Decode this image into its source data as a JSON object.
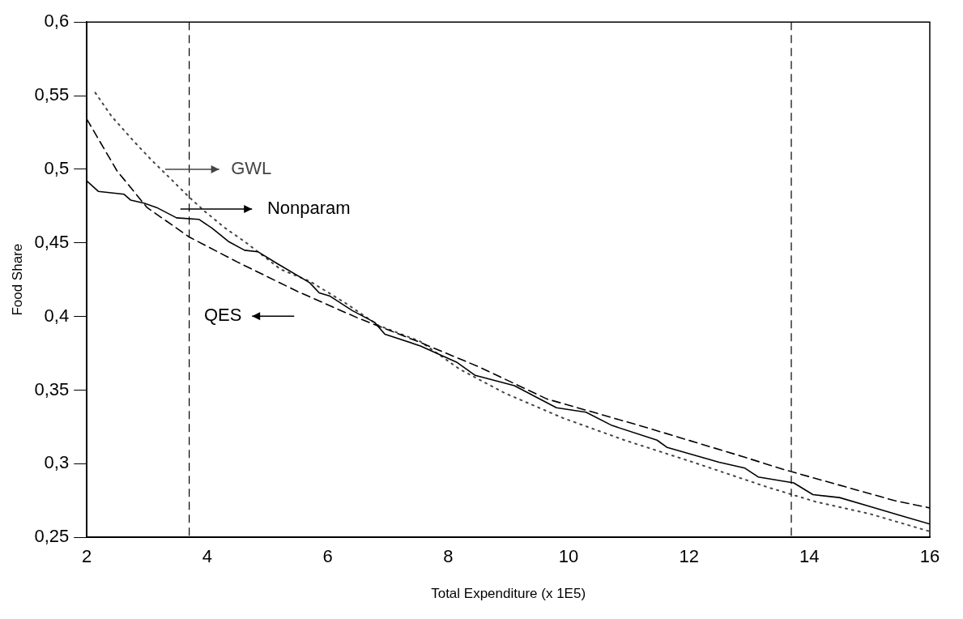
{
  "chart_data": {
    "type": "line",
    "xlabel": "Total Expenditure (x 1E5)",
    "ylabel": "Food Share",
    "xlim": [
      2,
      16
    ],
    "xticks": [
      2,
      4,
      6,
      8,
      10,
      12,
      14,
      16
    ],
    "ylim": [
      0.25,
      0.6
    ],
    "yticks": [
      {
        "value": 0.25,
        "label": "0,25"
      },
      {
        "value": 0.3,
        "label": "0,3"
      },
      {
        "value": 0.35,
        "label": "0,35"
      },
      {
        "value": 0.4,
        "label": "0,4"
      },
      {
        "value": 0.45,
        "label": "0,45"
      },
      {
        "value": 0.5,
        "label": "0,5"
      },
      {
        "value": 0.55,
        "label": "0,55"
      },
      {
        "value": 0.6,
        "label": "0,6"
      }
    ],
    "grid": false,
    "legend": "top left",
    "marker": "none",
    "series": [
      {
        "name": "Nonparam",
        "color": "#000000",
        "line_style": "solid",
        "x": [
          2,
          2.19,
          2.62,
          2.73,
          2.95,
          3.16,
          3.49,
          3.86,
          4.08,
          4.35,
          4.62,
          4.84,
          5.16,
          5.7,
          5.86,
          6.03,
          6.41,
          6.78,
          6.95,
          7.54,
          8.14,
          8.45,
          9.1,
          9.8,
          10.29,
          10.72,
          11.47,
          11.64,
          12.5,
          12.93,
          13.15,
          13.74,
          14.06,
          14.5,
          15,
          15.5,
          16
        ],
        "values": [
          0.492,
          0.485,
          0.483,
          0.479,
          0.477,
          0.474,
          0.467,
          0.466,
          0.46,
          0.451,
          0.445,
          0.444,
          0.436,
          0.423,
          0.416,
          0.414,
          0.404,
          0.396,
          0.388,
          0.38,
          0.369,
          0.36,
          0.353,
          0.338,
          0.335,
          0.326,
          0.316,
          0.311,
          0.301,
          0.297,
          0.291,
          0.287,
          0.279,
          0.277,
          0.271,
          0.265,
          0.259
        ]
      },
      {
        "name": "QES",
        "color": "#000000",
        "line_style": "dashed",
        "x": [
          2,
          2.5,
          3,
          3.7,
          4.5,
          5.5,
          6.5,
          7.5,
          8.5,
          9.64,
          11.26,
          12.88,
          13.58,
          15.41,
          16
        ],
        "values": [
          0.534,
          0.499,
          0.474,
          0.454,
          0.437,
          0.417,
          0.399,
          0.383,
          0.366,
          0.344,
          0.325,
          0.305,
          0.296,
          0.275,
          0.27
        ]
      },
      {
        "name": "GWL",
        "color": "#444444",
        "line_style": "dotted",
        "x": [
          2.14,
          2.41,
          2.78,
          3.08,
          3.38,
          3.7,
          3.97,
          4.3,
          4.65,
          5.22,
          5.7,
          6.3,
          6.84,
          7.54,
          8.2,
          8.94,
          9.91,
          10.93,
          12.07,
          13.31,
          14.12,
          15,
          16
        ],
        "values": [
          0.552,
          0.536,
          0.519,
          0.506,
          0.494,
          0.481,
          0.471,
          0.46,
          0.45,
          0.432,
          0.424,
          0.409,
          0.394,
          0.383,
          0.364,
          0.348,
          0.331,
          0.316,
          0.301,
          0.284,
          0.274,
          0.266,
          0.254
        ]
      }
    ],
    "ref_lines": [
      {
        "axis": "x",
        "value": 3.7,
        "line_style": "dashed",
        "color": "#000000"
      },
      {
        "axis": "x",
        "value": 13.7,
        "line_style": "dashed",
        "color": "#000000"
      }
    ]
  }
}
